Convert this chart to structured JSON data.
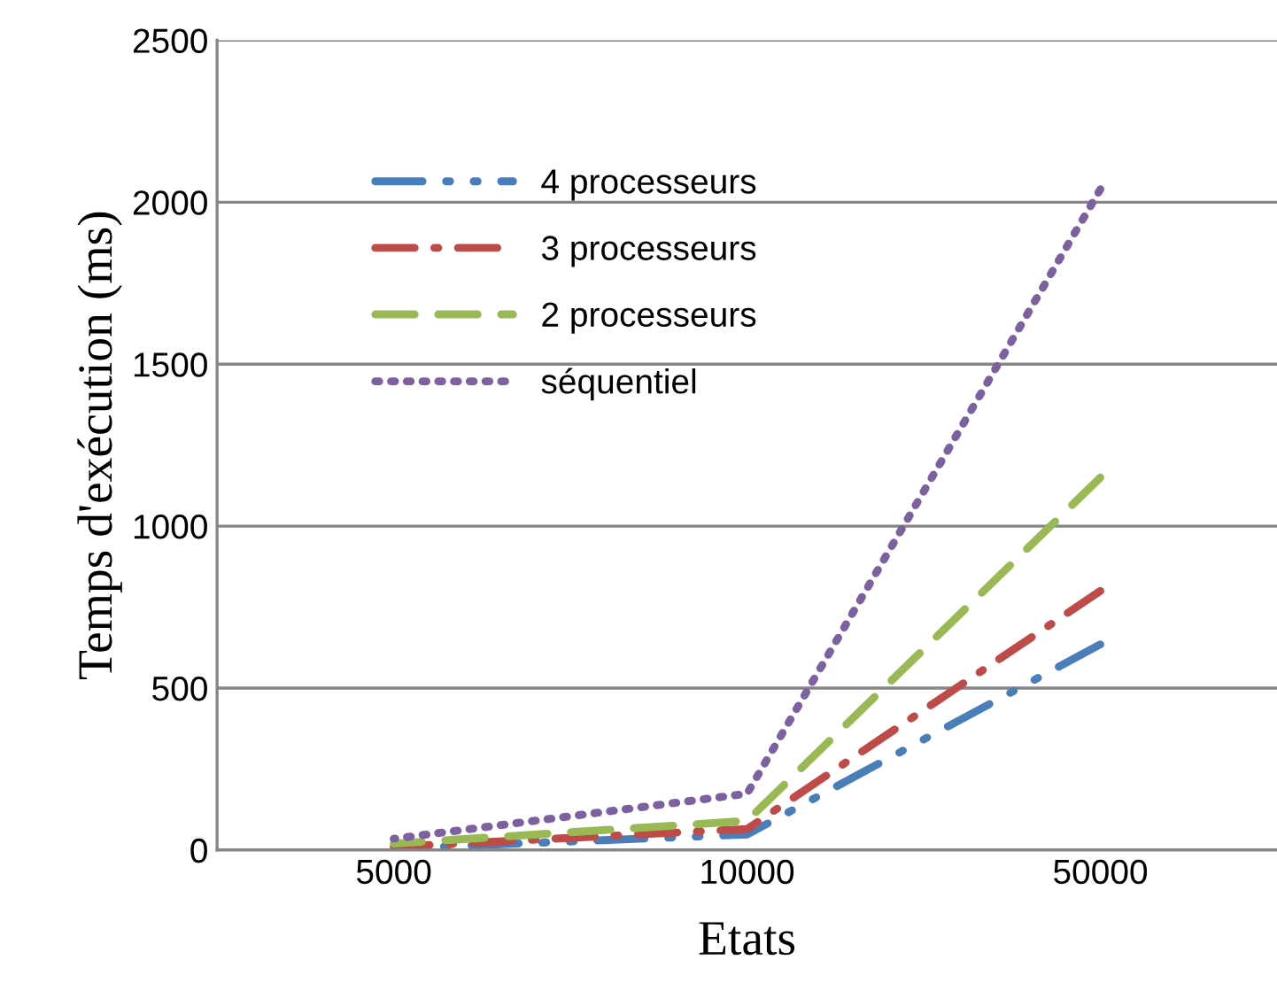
{
  "chart_data": {
    "type": "line",
    "xlabel": "Etats",
    "ylabel": "Temps d'exécution (ms)",
    "categories": [
      "5000",
      "10000",
      "50000"
    ],
    "series": [
      {
        "name": "4 processeurs",
        "color": "#4a7ebb",
        "values": [
          5,
          48,
          635
        ],
        "line_style": "dashdotdot"
      },
      {
        "name": "3 processeurs",
        "color": "#be4b48",
        "values": [
          10,
          65,
          800
        ],
        "line_style": "dashdot"
      },
      {
        "name": "2 processeurs",
        "color": "#98b954",
        "values": [
          20,
          90,
          1150
        ],
        "line_style": "dashed"
      },
      {
        "name": "séquentiel",
        "color": "#7d60a0",
        "values": [
          35,
          174,
          2040
        ],
        "line_style": "dotted"
      }
    ],
    "ylim": [
      0,
      2500
    ],
    "yticks": [
      0,
      500,
      1000,
      1500,
      2000,
      2500
    ],
    "grid": "y",
    "legend": "top left",
    "marker": "none"
  }
}
